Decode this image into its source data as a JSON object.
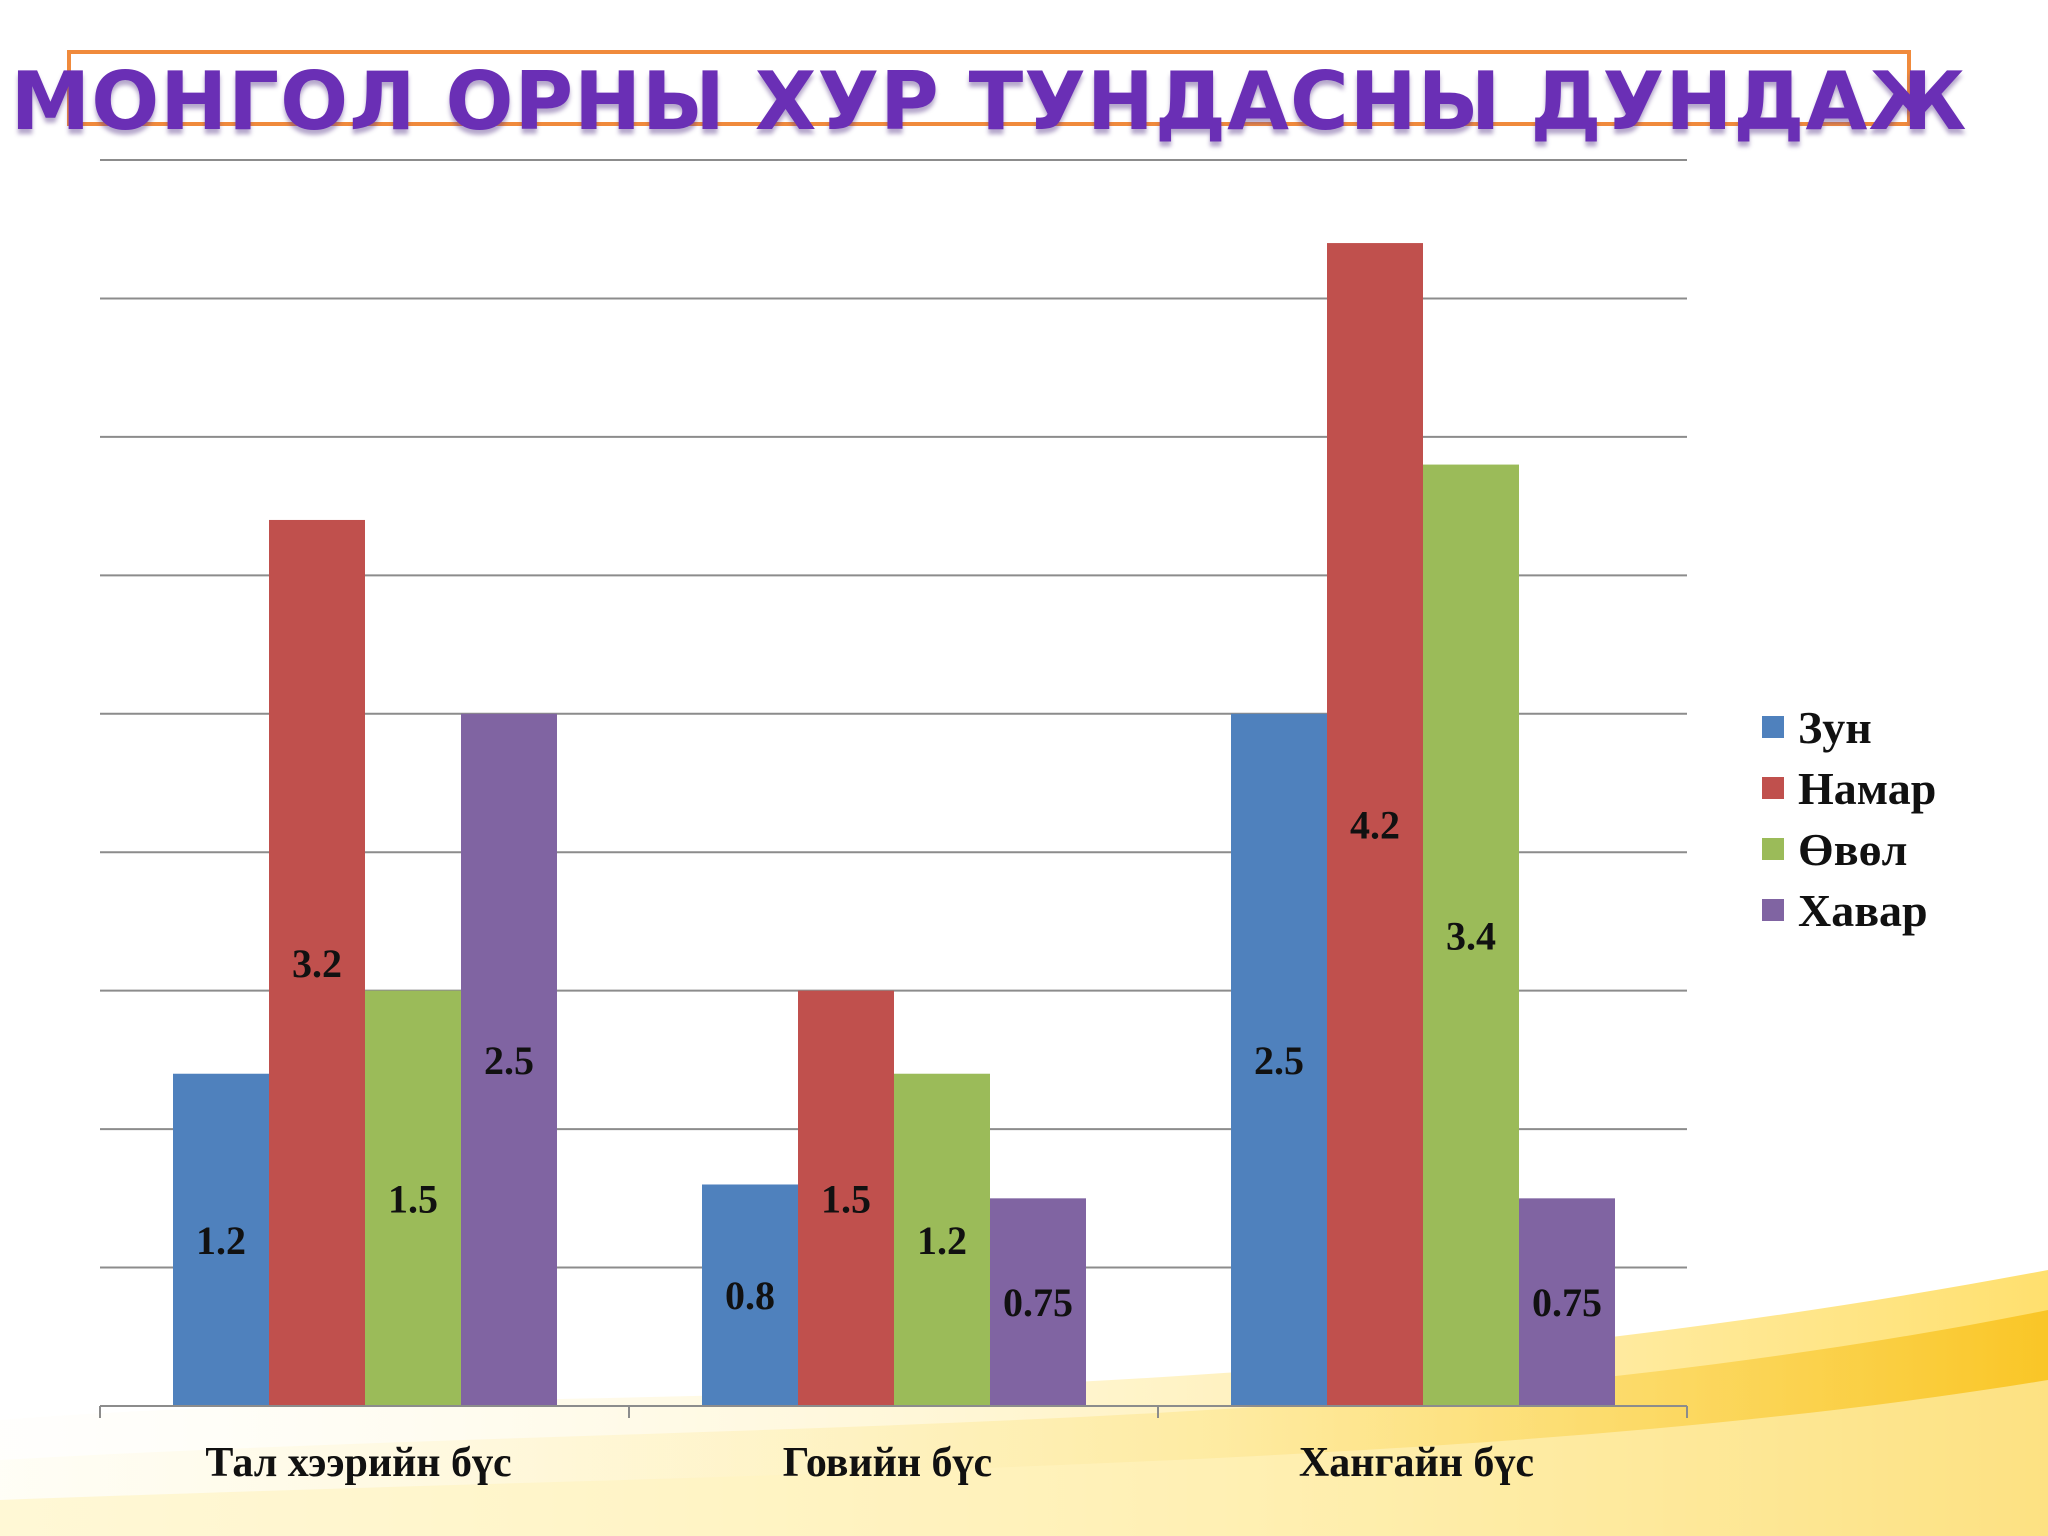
{
  "title": "МОНГОЛ ОРНЫ ХУР ТУНДАСНЫ ДУНДАЖ",
  "chart_data": {
    "type": "bar",
    "title": "МОНГОЛ ОРНЫ ХУР ТУНДАСНЫ ДУНДАЖ",
    "categories": [
      "Тал хээрийн бүс",
      "Говийн бүс",
      "Хангайн бүс"
    ],
    "series": [
      {
        "name": "Зун",
        "color": "#4f81bd",
        "values": [
          1.2,
          0.8,
          2.5
        ]
      },
      {
        "name": "Намар",
        "color": "#c0504d",
        "values": [
          3.2,
          1.5,
          4.2
        ]
      },
      {
        "name": "Өвөл",
        "color": "#9bbb59",
        "values": [
          1.5,
          1.2,
          3.4
        ]
      },
      {
        "name": "Хавар",
        "color": "#8064a2",
        "values": [
          2.5,
          0.75,
          0.75
        ]
      }
    ],
    "data_labels": [
      [
        "1.2",
        "0.8",
        "2.5"
      ],
      [
        "3.2",
        "1.5",
        "4.2"
      ],
      [
        "1.5",
        "1.2",
        "3.4"
      ],
      [
        "2.5",
        "0.75",
        "0.75"
      ]
    ],
    "ylim": [
      0,
      4.5
    ],
    "grid": true,
    "legend": "right"
  }
}
